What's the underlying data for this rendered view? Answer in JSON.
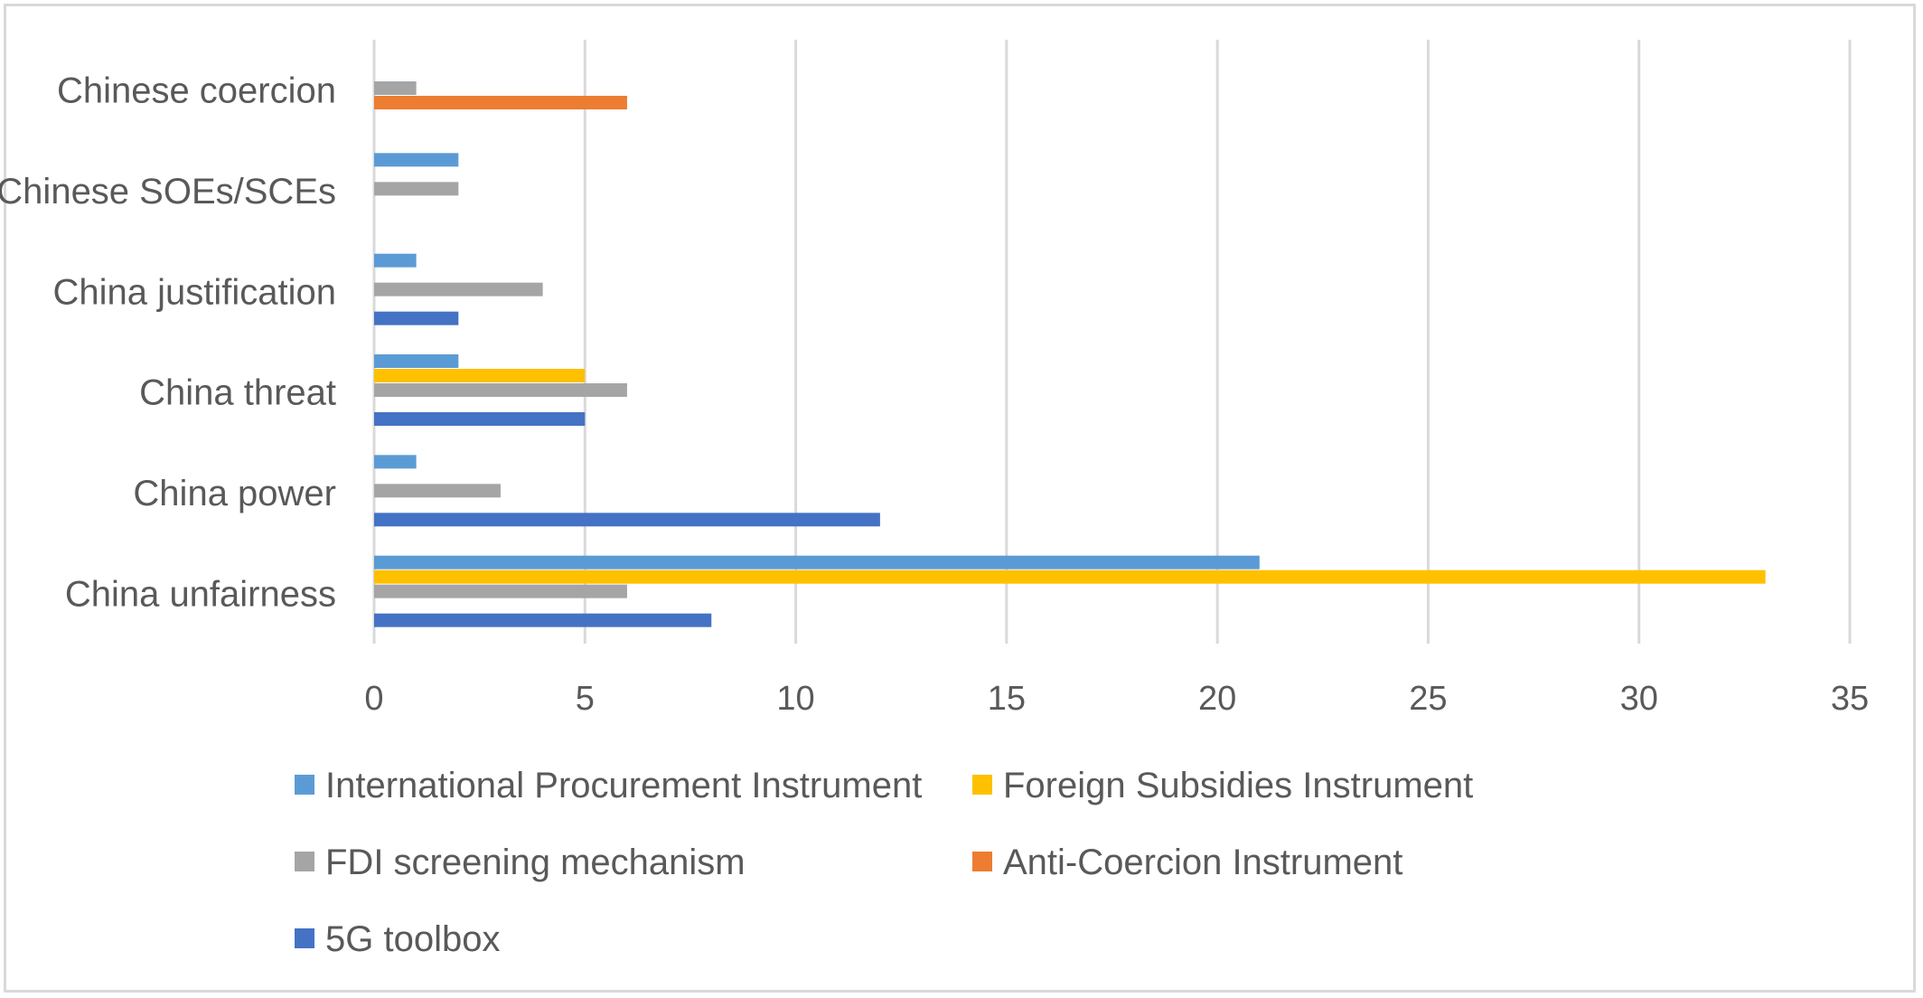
{
  "chart_data": {
    "type": "bar",
    "orientation": "horizontal",
    "title": "",
    "xlabel": "",
    "ylabel": "",
    "categories": [
      "China unfairness",
      "China power",
      "China threat",
      "China justification",
      "Chinese SOEs/SCEs",
      "Chinese coercion"
    ],
    "series": [
      {
        "name": "International Procurement Instrument",
        "color": "#5b9bd5",
        "values": [
          21,
          1,
          2,
          1,
          2,
          0
        ]
      },
      {
        "name": "Foreign Subsidies Instrument",
        "color": "#ffc000",
        "values": [
          33,
          0,
          5,
          0,
          0,
          0
        ]
      },
      {
        "name": "FDI screening mechanism",
        "color": "#a5a5a5",
        "values": [
          6,
          3,
          6,
          4,
          2,
          1
        ]
      },
      {
        "name": "Anti-Coercion Instrument",
        "color": "#ed7d31",
        "values": [
          0,
          0,
          0,
          0,
          0,
          6
        ]
      },
      {
        "name": "5G toolbox",
        "color": "#4472c4",
        "values": [
          8,
          12,
          5,
          2,
          0,
          0
        ]
      }
    ],
    "xlim": [
      0,
      35
    ],
    "xticks": [
      0,
      5,
      10,
      15,
      20,
      25,
      30,
      35
    ],
    "grid": true,
    "legend_position": "bottom"
  }
}
